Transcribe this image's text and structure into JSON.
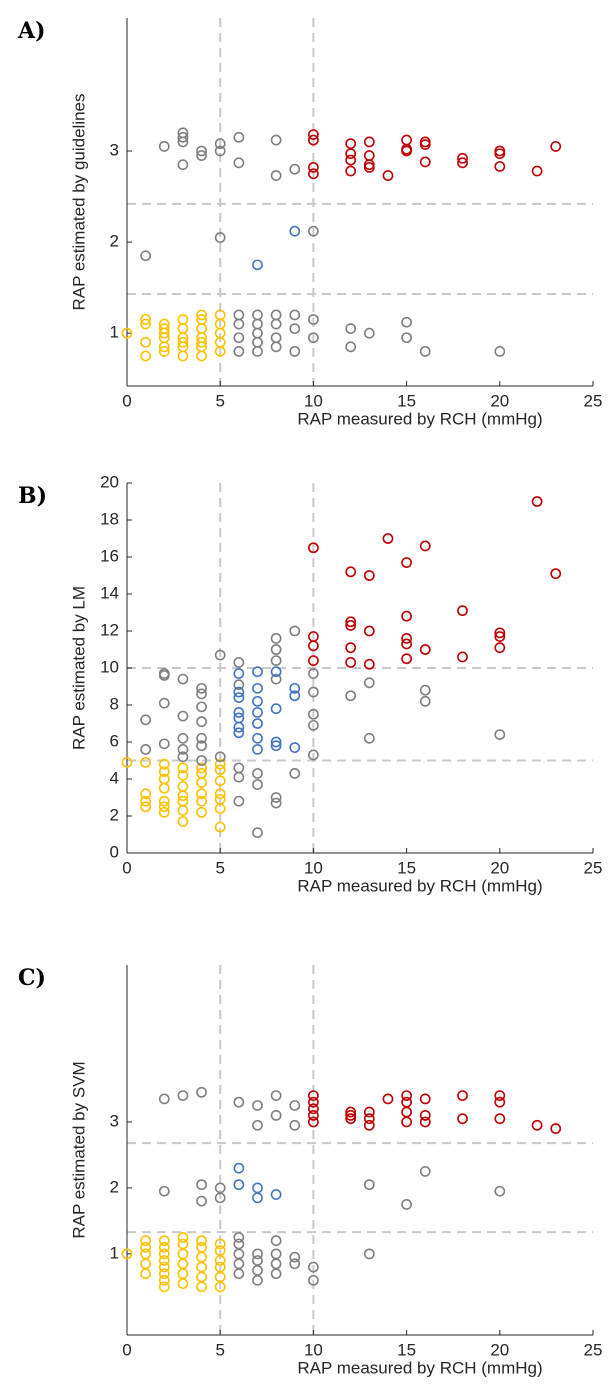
{
  "chart_data": [
    {
      "type": "scatter",
      "panel": "A)",
      "xlabel": "RAP measured by RCH (mmHg)",
      "ylabel": "RAP estimated by guidelines",
      "xlim": [
        0,
        25
      ],
      "xticks": [
        0,
        5,
        10,
        15,
        20,
        25
      ],
      "ylim": [
        0.42,
        4.46
      ],
      "yticks": [
        1,
        2,
        3
      ],
      "vlines": [
        5,
        10
      ],
      "hlines": [
        1.43,
        2.42
      ],
      "series": [
        {
          "color": "#ffc000",
          "x": [
            0,
            1,
            1,
            1,
            1,
            2,
            2,
            2,
            2,
            2,
            2,
            3,
            3,
            3,
            3,
            3,
            3,
            4,
            4,
            4,
            4,
            4,
            4,
            4,
            5,
            5,
            5,
            5,
            5
          ],
          "values": [
            1.0,
            0.75,
            0.9,
            1.1,
            1.15,
            0.85,
            0.95,
            1.05,
            1.1,
            0.8,
            1.0,
            0.75,
            0.85,
            0.95,
            1.05,
            1.15,
            0.9,
            0.75,
            0.85,
            0.95,
            1.05,
            1.15,
            1.2,
            0.9,
            0.8,
            0.9,
            1.0,
            1.1,
            1.2
          ]
        },
        {
          "color": "#7f7f7f",
          "x": [
            1,
            2,
            3,
            3,
            3,
            3,
            4,
            4,
            5,
            5,
            5,
            6,
            6,
            6,
            6,
            6,
            6,
            7,
            7,
            7,
            7,
            7,
            8,
            8,
            8,
            8,
            8,
            8,
            9,
            9,
            9,
            9,
            10,
            10,
            10,
            12,
            12,
            13,
            15,
            15,
            16,
            20
          ],
          "values": [
            1.85,
            3.05,
            2.85,
            3.1,
            3.15,
            3.2,
            2.95,
            3.0,
            2.05,
            3.0,
            3.08,
            0.8,
            0.95,
            1.1,
            1.2,
            2.87,
            3.15,
            0.8,
            0.9,
            1.0,
            1.1,
            1.2,
            0.85,
            0.95,
            1.1,
            1.2,
            2.73,
            3.12,
            0.8,
            1.05,
            1.2,
            2.8,
            0.95,
            1.15,
            2.12,
            0.85,
            1.05,
            1.0,
            0.95,
            1.12,
            0.8,
            0.8
          ]
        },
        {
          "color": "#4472c4",
          "x": [
            7,
            9
          ],
          "values": [
            1.75,
            2.12
          ]
        },
        {
          "color": "#c00000",
          "x": [
            10,
            10,
            10,
            10,
            12,
            12,
            12,
            12,
            13,
            13,
            13,
            13,
            14,
            15,
            15,
            15,
            16,
            16,
            16,
            18,
            18,
            20,
            20,
            20,
            22,
            23
          ],
          "values": [
            2.75,
            2.82,
            3.12,
            3.18,
            2.78,
            2.9,
            2.97,
            3.08,
            2.82,
            2.85,
            2.95,
            3.1,
            2.73,
            3.0,
            3.02,
            3.12,
            2.88,
            3.07,
            3.1,
            2.87,
            2.92,
            2.83,
            2.97,
            3.0,
            2.78,
            3.05
          ]
        }
      ]
    },
    {
      "type": "scatter",
      "panel": "B)",
      "xlabel": "RAP measured by RCH (mmHg)",
      "ylabel": "RAP estimated by LM",
      "xlim": [
        0,
        25
      ],
      "xticks": [
        0,
        5,
        10,
        15,
        20,
        25
      ],
      "ylim": [
        0,
        20
      ],
      "yticks": [
        0,
        2,
        4,
        6,
        8,
        10,
        12,
        14,
        16,
        18,
        20
      ],
      "vlines": [
        5,
        10
      ],
      "hlines": [
        5,
        10
      ],
      "series": [
        {
          "color": "#ffc000",
          "x": [
            0,
            1,
            1,
            1,
            1,
            2,
            2,
            2,
            2,
            2,
            2,
            2,
            3,
            3,
            3,
            3,
            3,
            3,
            3,
            4,
            4,
            4,
            4,
            4,
            4,
            5,
            5,
            5,
            5,
            5,
            5,
            5
          ],
          "values": [
            4.9,
            2.5,
            2.8,
            3.2,
            4.9,
            2.2,
            2.5,
            2.8,
            3.5,
            4.0,
            4.4,
            4.8,
            1.7,
            2.3,
            2.8,
            3.1,
            3.6,
            4.2,
            4.6,
            2.2,
            2.8,
            3.2,
            3.8,
            4.3,
            4.6,
            1.4,
            2.4,
            2.9,
            3.2,
            3.9,
            4.5,
            4.8
          ]
        },
        {
          "color": "#7f7f7f",
          "x": [
            1,
            1,
            2,
            2,
            2,
            2,
            3,
            3,
            3,
            3,
            3,
            4,
            4,
            4,
            4,
            4,
            4,
            4,
            5,
            5,
            6,
            6,
            6,
            6,
            6,
            7,
            7,
            7,
            8,
            8,
            8,
            8,
            8,
            8,
            9,
            9,
            10,
            10,
            10,
            10,
            10,
            12,
            13,
            13,
            16,
            16,
            20
          ],
          "values": [
            5.6,
            7.2,
            5.9,
            8.1,
            9.6,
            9.7,
            5.2,
            5.6,
            6.2,
            7.4,
            9.4,
            5.0,
            5.8,
            6.2,
            7.1,
            7.9,
            8.6,
            8.9,
            5.2,
            10.7,
            2.8,
            4.1,
            4.6,
            9.1,
            10.3,
            1.1,
            3.7,
            4.3,
            2.7,
            3.0,
            9.4,
            10.4,
            11.0,
            11.6,
            4.3,
            12.0,
            5.3,
            6.9,
            7.5,
            8.7,
            9.7,
            8.5,
            6.2,
            9.2,
            8.2,
            8.8,
            6.4
          ]
        },
        {
          "color": "#4472c4",
          "x": [
            6,
            6,
            6,
            6,
            6,
            6,
            6,
            7,
            7,
            7,
            7,
            7,
            7,
            7,
            8,
            8,
            8,
            8,
            9,
            9,
            9
          ],
          "values": [
            6.5,
            6.8,
            7.3,
            7.6,
            8.4,
            8.7,
            9.7,
            5.6,
            6.2,
            7.0,
            7.6,
            8.2,
            8.9,
            9.8,
            5.8,
            6.0,
            7.8,
            9.8,
            5.7,
            8.5,
            8.9
          ]
        },
        {
          "color": "#c00000",
          "x": [
            10,
            10,
            10,
            10,
            12,
            12,
            12,
            12,
            12,
            13,
            13,
            13,
            14,
            15,
            15,
            15,
            15,
            15,
            16,
            16,
            18,
            18,
            20,
            20,
            20,
            22,
            23
          ],
          "values": [
            10.4,
            11.2,
            11.7,
            16.5,
            10.3,
            11.1,
            12.3,
            12.5,
            15.2,
            10.2,
            12.0,
            15.0,
            17.0,
            10.5,
            11.3,
            11.6,
            12.8,
            15.7,
            11.0,
            16.6,
            10.6,
            13.1,
            11.1,
            11.7,
            11.9,
            19.0,
            15.1
          ]
        }
      ]
    },
    {
      "type": "scatter",
      "panel": "C)",
      "xlabel": "RAP measured by RCH (mmHg)",
      "ylabel": "RAP estimated by SVM",
      "xlim": [
        0,
        25
      ],
      "xticks": [
        0,
        5,
        10,
        15,
        20,
        25
      ],
      "ylim": [
        -0.23,
        5.38
      ],
      "yticks": [
        1,
        2,
        3
      ],
      "vlines": [
        5,
        10
      ],
      "hlines": [
        1.33,
        2.68
      ],
      "series": [
        {
          "color": "#ffc000",
          "x": [
            0,
            1,
            1,
            1,
            1,
            1,
            2,
            2,
            2,
            2,
            2,
            2,
            2,
            2,
            3,
            3,
            3,
            3,
            3,
            3,
            4,
            4,
            4,
            4,
            4,
            4,
            5,
            5,
            5,
            5,
            5,
            5
          ],
          "values": [
            1.0,
            0.7,
            0.85,
            1.0,
            1.1,
            1.2,
            0.5,
            0.6,
            0.7,
            0.8,
            0.9,
            1.0,
            1.1,
            1.2,
            0.55,
            0.7,
            0.85,
            1.0,
            1.15,
            1.25,
            0.5,
            0.65,
            0.8,
            0.95,
            1.1,
            1.2,
            0.5,
            0.65,
            0.8,
            0.9,
            1.05,
            1.15
          ]
        },
        {
          "color": "#7f7f7f",
          "x": [
            2,
            2,
            3,
            4,
            4,
            4,
            5,
            5,
            6,
            6,
            6,
            6,
            6,
            6,
            7,
            7,
            7,
            7,
            7,
            7,
            8,
            8,
            8,
            8,
            8,
            8,
            9,
            9,
            9,
            9,
            10,
            10,
            13,
            13,
            15,
            16,
            20
          ],
          "values": [
            1.95,
            3.35,
            3.4,
            1.8,
            2.05,
            3.45,
            1.85,
            2.0,
            0.7,
            0.85,
            1.0,
            1.15,
            1.25,
            3.3,
            0.6,
            0.75,
            0.9,
            1.0,
            2.95,
            3.25,
            0.7,
            0.85,
            1.0,
            1.2,
            3.1,
            3.4,
            0.85,
            0.95,
            2.95,
            3.25,
            0.6,
            0.8,
            1.0,
            2.05,
            1.75,
            2.25,
            1.95
          ]
        },
        {
          "color": "#4472c4",
          "x": [
            6,
            6,
            7,
            7,
            8
          ],
          "values": [
            2.05,
            2.3,
            1.85,
            2.0,
            1.9
          ]
        },
        {
          "color": "#c00000",
          "x": [
            10,
            10,
            10,
            10,
            10,
            12,
            12,
            12,
            13,
            13,
            13,
            14,
            15,
            15,
            15,
            15,
            16,
            16,
            16,
            18,
            18,
            20,
            20,
            20,
            22,
            23
          ],
          "values": [
            3.0,
            3.1,
            3.2,
            3.3,
            3.4,
            3.05,
            3.1,
            3.15,
            2.95,
            3.05,
            3.15,
            3.35,
            3.0,
            3.15,
            3.3,
            3.4,
            3.0,
            3.1,
            3.35,
            3.05,
            3.4,
            3.05,
            3.3,
            3.4,
            2.95,
            2.9
          ]
        }
      ]
    }
  ]
}
